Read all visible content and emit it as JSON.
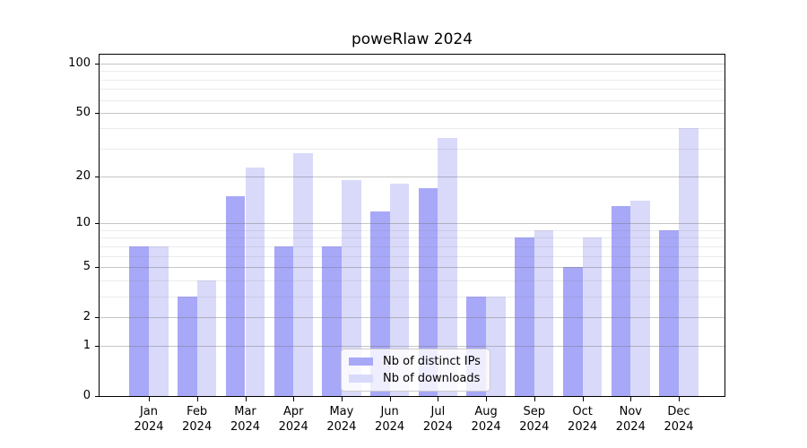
{
  "chart_data": {
    "type": "bar",
    "title": "poweRlaw 2024",
    "months": [
      "Jan",
      "Feb",
      "Mar",
      "Apr",
      "May",
      "Jun",
      "Jul",
      "Aug",
      "Sep",
      "Oct",
      "Nov",
      "Dec"
    ],
    "year": "2024",
    "series": [
      {
        "name": "Nb of distinct IPs",
        "color": "#a8a8f8",
        "values": [
          7,
          3,
          15,
          7,
          7,
          12,
          17,
          3,
          8,
          5,
          13,
          9
        ]
      },
      {
        "name": "Nb of downloads",
        "color": "#d9d9fa",
        "values": [
          7,
          4,
          23,
          28,
          19,
          18,
          35,
          3,
          9,
          8,
          14,
          40
        ]
      }
    ],
    "yscale": "log1p",
    "ylim": [
      0,
      113.3
    ],
    "y_tick_labels": [
      "100",
      "50",
      "20",
      "10",
      "5",
      "2",
      "1",
      "0"
    ],
    "y_tick_values": [
      100,
      50,
      20,
      10,
      5,
      2,
      1,
      0
    ],
    "y_gridlines_major": [
      1,
      2,
      5,
      10,
      20,
      50,
      100
    ],
    "y_gridlines_minor": [
      3,
      4,
      6,
      7,
      8,
      9,
      30,
      40,
      60,
      70,
      80,
      90
    ],
    "grid": true,
    "legend_position": "bottom-center",
    "colors": {
      "background": "#ffffff",
      "axis": "#000000",
      "grid_major": "#c6c6c6",
      "grid_minor": "#ebebeb",
      "text": "#000000"
    }
  }
}
